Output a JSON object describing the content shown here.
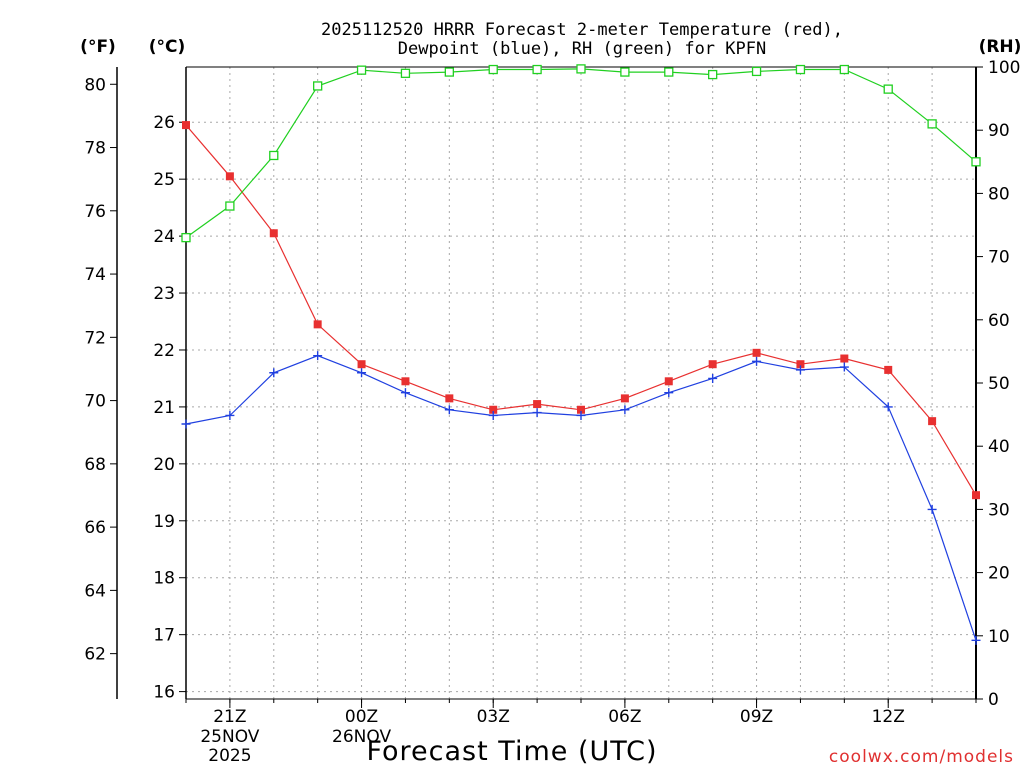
{
  "chart_data": {
    "type": "line",
    "title_line1": "2025112520 HRRR Forecast 2-meter Temperature (red),",
    "title_line2": "Dewpoint (blue), RH (green) for KPFN",
    "xlabel": "Forecast Time (UTC)",
    "credit": "coolwx.com/models",
    "axis_label_f": "(°F)",
    "axis_label_c": "(°C)",
    "axis_label_rh": "(RH)",
    "hours": [
      0,
      1,
      2,
      3,
      4,
      5,
      6,
      7,
      8,
      9,
      10,
      11,
      12,
      13,
      14,
      15,
      16,
      17,
      18
    ],
    "x_ticks": [
      {
        "hour": 1,
        "label": "21Z",
        "date": "25NOV",
        "year": "2025"
      },
      {
        "hour": 4,
        "label": "00Z",
        "date": "26NOV",
        "year": ""
      },
      {
        "hour": 7,
        "label": "03Z",
        "date": "",
        "year": ""
      },
      {
        "hour": 10,
        "label": "06Z",
        "date": "",
        "year": ""
      },
      {
        "hour": 13,
        "label": "09Z",
        "date": "",
        "year": ""
      },
      {
        "hour": 16,
        "label": "12Z",
        "date": "",
        "year": ""
      }
    ],
    "c_range": [
      15.87,
      26.97
    ],
    "c_ticks": [
      16,
      17,
      18,
      19,
      20,
      21,
      22,
      23,
      24,
      25,
      26
    ],
    "f_ticks": [
      62,
      64,
      66,
      68,
      70,
      72,
      74,
      76,
      78,
      80
    ],
    "rh_range": [
      0,
      100
    ],
    "rh_ticks": [
      0,
      10,
      20,
      30,
      40,
      50,
      60,
      70,
      80,
      90,
      100
    ],
    "series": [
      {
        "name": "Temperature",
        "units": "C",
        "color": "#e83030",
        "marker": "square-filled",
        "values": [
          25.95,
          25.05,
          24.05,
          22.45,
          21.75,
          21.45,
          21.15,
          20.95,
          21.05,
          20.95,
          21.15,
          21.45,
          21.75,
          21.95,
          21.75,
          21.85,
          21.65,
          20.75,
          19.45
        ]
      },
      {
        "name": "Dewpoint",
        "units": "C",
        "color": "#2040e0",
        "marker": "plus",
        "values": [
          20.7,
          20.85,
          21.6,
          21.9,
          21.6,
          21.25,
          20.95,
          20.85,
          20.9,
          20.85,
          20.95,
          21.25,
          21.5,
          21.8,
          21.65,
          21.7,
          21.0,
          19.2,
          16.9
        ]
      },
      {
        "name": "RH",
        "units": "%",
        "color": "#20d020",
        "marker": "square-open",
        "values": [
          73,
          78,
          86,
          97,
          99.5,
          99,
          99.2,
          99.6,
          99.6,
          99.7,
          99.2,
          99.2,
          98.8,
          99.3,
          99.6,
          99.6,
          96.5,
          91,
          85
        ]
      }
    ]
  }
}
